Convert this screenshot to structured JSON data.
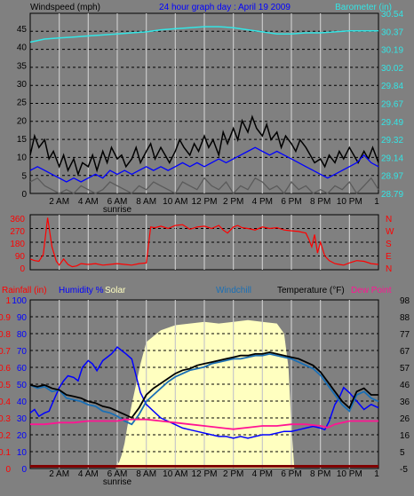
{
  "title": "24 hour graph day : April 19 2009",
  "colors": {
    "background": "#808080",
    "plot_bg": "#808080",
    "grid_h": "#000000",
    "grid_v": "#c8c8c8",
    "wind": "#000000",
    "wind_avg": "#0000ff",
    "wind_low": "#5a5a5a",
    "barometer": "#33e5e5",
    "direction": "#ff0000",
    "rainfall": "#ff0000",
    "humidity": "#0000ff",
    "solar": "#ffffc0",
    "windchill": "#1a6fb5",
    "temperature": "#000000",
    "dewpoint": "#ff1493",
    "purple_axis": "#6633cc",
    "bar": "#800000",
    "white": "#ffffff"
  },
  "hour_labels": [
    "2 AM",
    "4 AM",
    "6 AM",
    "8 AM",
    "10 AM",
    "12 PM",
    "2 PM",
    "4 PM",
    "6 PM",
    "8 PM",
    "10 PM"
  ],
  "end_tick": "1",
  "sunrise_label": "sunrise",
  "chart_data": [
    {
      "type": "line",
      "name": "wind",
      "ylabel_left": "Windspeed (mph)",
      "ylabel_right": "Barometer (in)",
      "left_ticks": [
        "45",
        "40",
        "35",
        "30",
        "25",
        "20",
        "15",
        "10",
        "5",
        "0"
      ],
      "right_ticks": [
        "30.54",
        "30.37",
        "30.19",
        "30.02",
        "29.84",
        "29.67",
        "29.49",
        "29.32",
        "29.14",
        "28.97",
        "28.79"
      ],
      "ylim_left": [
        0,
        47
      ],
      "ylim_right": [
        28.79,
        30.54
      ],
      "x_range_hours": [
        0,
        24
      ],
      "series": [
        {
          "key": "gust",
          "color": "wind",
          "x": [
            0,
            0.3,
            0.6,
            1,
            1.3,
            1.6,
            2,
            2.3,
            2.6,
            3,
            3.3,
            3.6,
            4,
            4.3,
            4.6,
            5,
            5.3,
            5.6,
            6,
            6.3,
            6.6,
            7,
            7.3,
            7.6,
            8,
            8.3,
            8.6,
            9,
            9.3,
            9.6,
            10,
            10.3,
            10.6,
            11,
            11.3,
            11.6,
            12,
            12.3,
            12.6,
            13,
            13.3,
            13.6,
            14,
            14.3,
            14.6,
            15,
            15.3,
            15.6,
            16,
            16.3,
            16.6,
            17,
            17.3,
            17.6,
            18,
            18.3,
            18.6,
            19,
            19.3,
            19.6,
            20,
            20.3,
            20.6,
            21,
            21.3,
            21.6,
            22,
            22.3,
            22.6,
            23,
            23.3,
            23.6,
            24
          ],
          "y": [
            10,
            15,
            12,
            14,
            9,
            11,
            7,
            10,
            6,
            9,
            5,
            8,
            7,
            10,
            6,
            11,
            8,
            12,
            9,
            10,
            7,
            9,
            12,
            8,
            11,
            13,
            9,
            12,
            10,
            8,
            11,
            14,
            12,
            10,
            13,
            11,
            15,
            12,
            14,
            10,
            16,
            13,
            17,
            14,
            19,
            16,
            20,
            17,
            15,
            18,
            14,
            16,
            12,
            15,
            13,
            11,
            14,
            12,
            10,
            8,
            9,
            7,
            10,
            8,
            11,
            9,
            12,
            10,
            8,
            11,
            9,
            12,
            8
          ]
        },
        {
          "key": "average",
          "color": "wind_avg",
          "x": [
            0,
            0.5,
            1,
            1.5,
            2,
            2.5,
            3,
            3.5,
            4,
            4.5,
            5,
            5.5,
            6,
            6.5,
            7,
            7.5,
            8,
            8.5,
            9,
            9.5,
            10,
            10.5,
            11,
            11.5,
            12,
            12.5,
            13,
            13.5,
            14,
            14.5,
            15,
            15.5,
            16,
            16.5,
            17,
            17.5,
            18,
            18.5,
            19,
            19.5,
            20,
            20.5,
            21,
            21.5,
            22,
            22.5,
            23,
            23.5,
            24
          ],
          "y": [
            6,
            7,
            6,
            5,
            4,
            3,
            4,
            3,
            4,
            5,
            4,
            6,
            5,
            6,
            5,
            6,
            7,
            6,
            7,
            6,
            7,
            8,
            7,
            8,
            7,
            8,
            9,
            8,
            9,
            10,
            11,
            12,
            11,
            10,
            11,
            10,
            9,
            8,
            7,
            6,
            5,
            4,
            5,
            6,
            7,
            8,
            10,
            8,
            7
          ]
        },
        {
          "key": "low",
          "color": "wind_low",
          "x": [
            0,
            0.5,
            1,
            1.5,
            2,
            2.5,
            3,
            3.5,
            4,
            4.5,
            5,
            5.5,
            6,
            6.5,
            7,
            7.5,
            8,
            8.5,
            9,
            9.5,
            10,
            10.5,
            11,
            11.5,
            12,
            12.5,
            13,
            13.5,
            14,
            14.5,
            15,
            15.5,
            16,
            16.5,
            17,
            17.5,
            18,
            18.5,
            19,
            19.5,
            20,
            20.5,
            21,
            21.5,
            22,
            22.5,
            23,
            23.5,
            24
          ],
          "y": [
            3,
            4,
            2,
            1,
            0,
            1,
            0,
            2,
            1,
            0,
            1,
            3,
            2,
            1,
            0,
            2,
            1,
            3,
            2,
            1,
            0,
            3,
            2,
            1,
            4,
            2,
            1,
            3,
            0,
            2,
            1,
            4,
            3,
            1,
            2,
            0,
            3,
            1,
            2,
            0,
            1,
            0,
            2,
            1,
            3,
            0,
            2,
            4,
            1
          ]
        },
        {
          "key": "barometer",
          "color": "barometer",
          "axis": "right",
          "x": [
            0,
            1,
            2,
            3,
            4,
            5,
            6,
            7,
            8,
            9,
            10,
            11,
            12,
            13,
            14,
            15,
            16,
            17,
            18,
            19,
            20,
            21,
            22,
            23,
            24
          ],
          "y": [
            30.26,
            30.29,
            30.3,
            30.31,
            30.32,
            30.33,
            30.34,
            30.35,
            30.36,
            30.38,
            30.39,
            30.4,
            30.41,
            30.41,
            30.4,
            30.38,
            30.36,
            30.34,
            30.34,
            30.35,
            30.35,
            30.36,
            30.37,
            30.37,
            30.37
          ]
        }
      ]
    },
    {
      "type": "line",
      "name": "direction",
      "left_ticks": [
        "360",
        "270",
        "180",
        "90",
        "0"
      ],
      "right_ticks": [
        "N",
        "W",
        "S",
        "E",
        "N"
      ],
      "ylim": [
        0,
        360
      ],
      "series": [
        {
          "key": "direction",
          "color": "direction",
          "x": [
            0,
            0.3,
            0.6,
            0.9,
            1.2,
            1.5,
            1.8,
            2.0,
            2.3,
            2.6,
            2.9,
            3.2,
            3.5,
            4,
            4.5,
            5,
            5.5,
            6,
            6.5,
            7,
            7.5,
            8,
            8.3,
            8.6,
            9,
            9.5,
            10,
            10.5,
            11,
            11.5,
            12,
            12.5,
            13,
            13.3,
            13.6,
            14,
            14.3,
            14.6,
            15,
            15.5,
            16,
            16.5,
            17,
            17.5,
            18,
            18.5,
            19,
            19.2,
            19.4,
            19.6,
            19.8,
            20,
            20.3,
            20.6,
            21,
            21.3,
            21.6,
            22,
            22.5,
            23,
            23.5,
            24
          ],
          "y": [
            70,
            60,
            55,
            100,
            340,
            150,
            55,
            30,
            70,
            35,
            20,
            25,
            40,
            35,
            40,
            30,
            35,
            40,
            35,
            30,
            40,
            45,
            280,
            275,
            285,
            270,
            290,
            295,
            265,
            280,
            285,
            270,
            290,
            260,
            240,
            280,
            290,
            275,
            270,
            260,
            280,
            270,
            275,
            260,
            255,
            250,
            240,
            200,
            150,
            230,
            110,
            180,
            90,
            60,
            40,
            35,
            30,
            45,
            60,
            55,
            40,
            35
          ]
        }
      ]
    },
    {
      "type": "line",
      "name": "temperature",
      "legend": [
        "Rainfall (in)",
        "Humidity %",
        "Solar",
        "Windchill",
        "Temperature (°F)",
        "Dew Point"
      ],
      "left_ticks_rain": [
        "1",
        "0.9",
        "0.8",
        "0.7",
        "0.6",
        "0.5",
        "0.4",
        "0.3",
        "0.2",
        "0.1",
        "0"
      ],
      "left_ticks_humidity": [
        "100",
        "90",
        "80",
        "70",
        "60",
        "50",
        "40",
        "30",
        "20",
        "10",
        "0"
      ],
      "right_ticks": [
        "98",
        "88",
        "77",
        "67",
        "57",
        "46",
        "36",
        "26",
        "16",
        "5",
        "-5"
      ],
      "ylim_humidity": [
        0,
        100
      ],
      "ylim_temp": [
        -5,
        98
      ],
      "series": [
        {
          "key": "solar",
          "color": "solar",
          "type": "area",
          "x": [
            0,
            5.9,
            6.0,
            6.1,
            6.3,
            6.5,
            6.7,
            7.0,
            7.3,
            7.6,
            8,
            9,
            10,
            11,
            12,
            13,
            14,
            15,
            16,
            17,
            17.5,
            17.8,
            18.0,
            18.2,
            24
          ],
          "y": [
            0,
            0,
            5,
            3,
            8,
            15,
            25,
            38,
            50,
            62,
            75,
            82,
            85,
            86,
            87,
            86,
            87,
            88,
            87,
            86,
            80,
            60,
            25,
            0,
            0
          ]
        },
        {
          "key": "humidity",
          "color": "humidity",
          "x": [
            0,
            0.3,
            0.6,
            1,
            1.3,
            1.6,
            2,
            2.3,
            2.6,
            3,
            3.3,
            3.6,
            4,
            4.3,
            4.6,
            5,
            5.3,
            5.6,
            6,
            6.3,
            6.6,
            7,
            7.3,
            7.6,
            8,
            8.5,
            9,
            9.5,
            10,
            10.5,
            11,
            11.5,
            12,
            12.5,
            13,
            13.5,
            14,
            14.5,
            15,
            15.5,
            16,
            16.5,
            17,
            17.5,
            18,
            18.5,
            19,
            19.5,
            20,
            20.3,
            20.6,
            21,
            21.3,
            21.6,
            22,
            22.5,
            23,
            23.5,
            24
          ],
          "y": [
            33,
            35,
            31,
            33,
            34,
            40,
            48,
            52,
            55,
            54,
            52,
            60,
            64,
            62,
            58,
            64,
            66,
            68,
            72,
            70,
            68,
            65,
            55,
            45,
            38,
            34,
            30,
            28,
            26,
            24,
            23,
            22,
            21,
            20,
            19,
            19,
            18,
            19,
            18,
            19,
            20,
            20,
            21,
            22,
            22,
            23,
            24,
            25,
            24,
            23,
            28,
            38,
            42,
            48,
            45,
            40,
            35,
            38,
            36
          ]
        },
        {
          "key": "windchill",
          "color": "windchill",
          "x": [
            0,
            0.5,
            1,
            1.5,
            2,
            2.5,
            3,
            3.5,
            4,
            4.5,
            5,
            5.5,
            6,
            6.5,
            7,
            7.5,
            8,
            8.5,
            9,
            9.5,
            10,
            10.5,
            11,
            11.5,
            12,
            12.5,
            13,
            13.5,
            14,
            14.5,
            15,
            15.5,
            16,
            16.5,
            17,
            17.5,
            18,
            18.5,
            19,
            19.5,
            20,
            20.5,
            21,
            21.5,
            22,
            22.5,
            23,
            23.5,
            24
          ],
          "y": [
            46,
            44,
            45,
            42,
            43,
            38,
            37,
            36,
            34,
            33,
            30,
            29,
            27,
            24,
            22,
            28,
            36,
            40,
            44,
            48,
            51,
            53,
            55,
            56,
            57,
            59,
            60,
            61,
            62,
            62,
            63,
            64,
            64,
            65,
            64,
            63,
            62,
            60,
            58,
            56,
            52,
            46,
            40,
            34,
            30,
            40,
            42,
            38,
            36
          ]
        },
        {
          "key": "temperature",
          "color": "temperature",
          "x": [
            0,
            0.5,
            1,
            1.5,
            2,
            2.5,
            3,
            3.5,
            4,
            4.5,
            5,
            5.5,
            6,
            6.5,
            7,
            7.5,
            8,
            8.5,
            9,
            9.5,
            10,
            10.5,
            11,
            11.5,
            12,
            12.5,
            13,
            13.5,
            14,
            14.5,
            15,
            15.5,
            16,
            16.5,
            17,
            17.5,
            18,
            18.5,
            19,
            19.5,
            20,
            20.5,
            21,
            21.5,
            22,
            22.5,
            23,
            23.5,
            24
          ],
          "y": [
            46,
            45,
            46,
            44,
            43,
            40,
            39,
            38,
            36,
            35,
            33,
            32,
            30,
            28,
            26,
            32,
            40,
            44,
            47,
            50,
            53,
            55,
            56,
            58,
            59,
            60,
            61,
            62,
            63,
            64,
            64,
            65,
            65,
            66,
            65,
            64,
            63,
            62,
            60,
            58,
            54,
            48,
            42,
            36,
            32,
            42,
            44,
            40,
            40
          ]
        },
        {
          "key": "dewpoint",
          "color": "dewpoint",
          "x": [
            0,
            1,
            2,
            3,
            4,
            5,
            6,
            6.5,
            7,
            8,
            9,
            10,
            11,
            12,
            13,
            14,
            15,
            16,
            17,
            18,
            19,
            20,
            20.5,
            21,
            22,
            23,
            24
          ],
          "y": [
            22,
            22,
            23,
            23,
            24,
            24,
            24,
            25,
            25,
            25,
            24,
            23,
            22,
            21,
            20,
            19,
            20,
            21,
            21,
            22,
            22,
            21,
            20,
            22,
            24,
            24,
            24
          ]
        },
        {
          "key": "rainfall",
          "color": "rainfall",
          "axis": "rain",
          "x": [
            0,
            24
          ],
          "y": [
            0,
            0
          ]
        }
      ]
    }
  ]
}
